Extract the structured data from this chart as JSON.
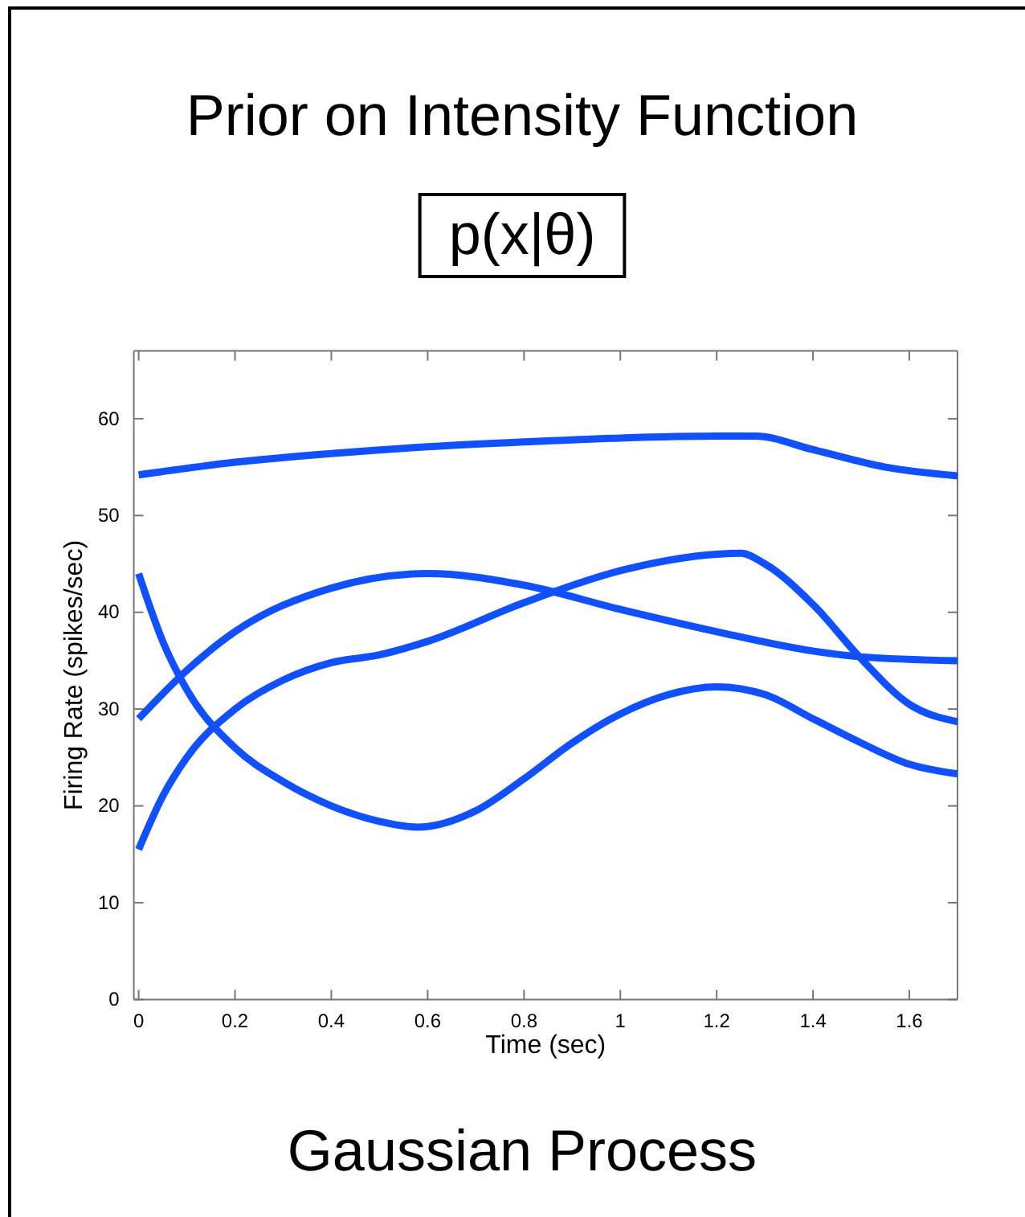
{
  "chart_data": {
    "type": "line",
    "title": "Prior on Intensity Function",
    "subtitle": "p(x|θ)",
    "xlabel": "Time (sec)",
    "ylabel": "Firing Rate (spikes/sec)",
    "annotations": [
      "Gaussian Process"
    ],
    "xlim": [
      -0.01,
      1.7
    ],
    "ylim": [
      0,
      67
    ],
    "xticks": [
      0,
      0.2,
      0.4,
      0.6,
      0.8,
      1,
      1.2,
      1.4,
      1.6
    ],
    "yticks": [
      0,
      10,
      20,
      30,
      40,
      50,
      60
    ],
    "grid": false,
    "marker": "none",
    "line_style": "solid",
    "series": [
      {
        "color": "#1050ff",
        "x": [
          0,
          0.2,
          0.4,
          0.6,
          0.8,
          1.0,
          1.2,
          1.28,
          1.4,
          1.55,
          1.7
        ],
        "values": [
          54.2,
          55.5,
          56.4,
          57.1,
          57.6,
          58.0,
          58.2,
          58.2,
          56.8,
          55,
          54.1
        ]
      },
      {
        "color": "#1050ff",
        "x": [
          0,
          0.1,
          0.2,
          0.4,
          0.6,
          0.8,
          1.0,
          1.2,
          1.4,
          1.5,
          1.7
        ],
        "values": [
          29,
          34,
          38,
          42.5,
          44,
          42.8,
          40.3,
          38,
          36,
          35.4,
          35
        ]
      },
      {
        "color": "#1050ff",
        "x": [
          0,
          0.05,
          0.1,
          0.2,
          0.3,
          0.4,
          0.5,
          0.6,
          0.8,
          1.0,
          1.2,
          1.25,
          1.3,
          1.4,
          1.5,
          1.6,
          1.7
        ],
        "values": [
          15.5,
          21,
          25,
          30,
          33,
          34.8,
          35.6,
          37,
          41,
          44.3,
          46,
          46.1,
          45,
          40.8,
          35.2,
          30.5,
          28.7
        ]
      },
      {
        "color": "#1050ff",
        "x": [
          0,
          0.05,
          0.1,
          0.2,
          0.3,
          0.4,
          0.5,
          0.58,
          0.7,
          0.8,
          0.9,
          1.0,
          1.1,
          1.2,
          1.3,
          1.4,
          1.5,
          1.6,
          1.7
        ],
        "values": [
          44,
          37,
          32,
          26,
          22.5,
          20,
          18.4,
          17.8,
          19.5,
          22.8,
          26.5,
          29.5,
          31.5,
          32.3,
          31.5,
          29,
          26.5,
          24.3,
          23.3
        ]
      }
    ]
  }
}
